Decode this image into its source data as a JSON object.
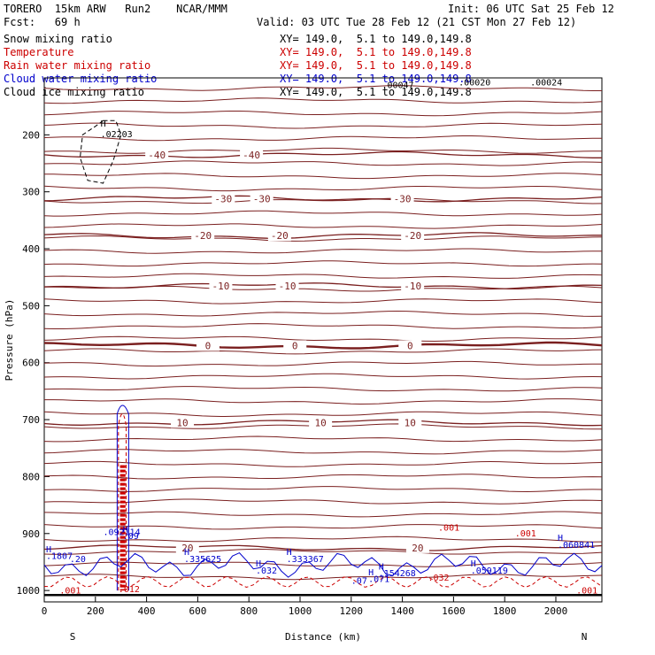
{
  "header": {
    "model": "TORERO  15km ARW   Run2    NCAR/MMM",
    "init": "Init: 06 UTC Sat 25 Feb 12",
    "fcst": "Fcst:   69 h",
    "valid": "Valid: 03 UTC Tue 28 Feb 12 (21 CST Mon 27 Feb 12)"
  },
  "legend": [
    {
      "label": "Snow mixing ratio",
      "xy": "XY= 149.0,  5.1 to 149.0,149.8",
      "color": "#000000"
    },
    {
      "label": "Temperature",
      "xy": "XY= 149.0,  5.1 to 149.0,149.8",
      "color": "#cc0000"
    },
    {
      "label": "Rain water mixing ratio",
      "xy": "XY= 149.0,  5.1 to 149.0,149.8",
      "color": "#cc0000"
    },
    {
      "label": "Cloud water mixing ratio",
      "xy": "XY= 149.0,  5.1 to 149.0,149.8",
      "color": "#0000cc"
    },
    {
      "label": "Cloud ice mixing ratio",
      "xy": "XY= 149.0,  5.1 to 149.0,149.8",
      "color": "#000000"
    }
  ],
  "chart_data": {
    "type": "cross-section",
    "xlabel": "Distance (km)",
    "ylabel": "Pressure (hPa)",
    "xlim": [
      0,
      2180
    ],
    "ylim": [
      1020,
      100
    ],
    "x_ticks": [
      0,
      200,
      400,
      600,
      800,
      1000,
      1200,
      1400,
      1600,
      1800,
      2000
    ],
    "y_ticks": [
      200,
      300,
      400,
      500,
      600,
      700,
      800,
      900,
      1000
    ],
    "x_end_labels": {
      "left": "S",
      "right": "N"
    },
    "temperature_isotherms": [
      {
        "value": -40,
        "label_x": [
          440,
          810
        ],
        "pressure": 235
      },
      {
        "value": -30,
        "label_x": [
          700,
          850,
          1400
        ],
        "pressure": 312
      },
      {
        "value": -20,
        "label_x": [
          620,
          920,
          1440
        ],
        "pressure": 377
      },
      {
        "value": -10,
        "label_x": [
          690,
          950,
          1440
        ],
        "pressure": 465
      },
      {
        "value": 0,
        "label_x": [
          640,
          980,
          1430
        ],
        "pressure": 570
      },
      {
        "value": 10,
        "label_x": [
          540,
          1080,
          1430
        ],
        "pressure": 705
      },
      {
        "value": 20,
        "label_x": [
          560,
          1460
        ],
        "pressure": 925
      }
    ],
    "annotations": {
      "snow_max": {
        "label": "H",
        "value": ".02203",
        "x": 220,
        "p": 195
      },
      "ice_max": [
        ".00047",
        ".00020",
        ".00024"
      ],
      "cloud_water_max": [
        ".09",
        ".1807",
        ".335625",
        ".333367",
        ".154268",
        ".059119",
        ".060841",
        ".032",
        ".071"
      ],
      "rain_labels": [
        ".001",
        ".012",
        ".032",
        ".001",
        ".001",
        ".001"
      ],
      "cloud_water_labels": [
        ".092114",
        ".20",
        ".07"
      ]
    }
  }
}
